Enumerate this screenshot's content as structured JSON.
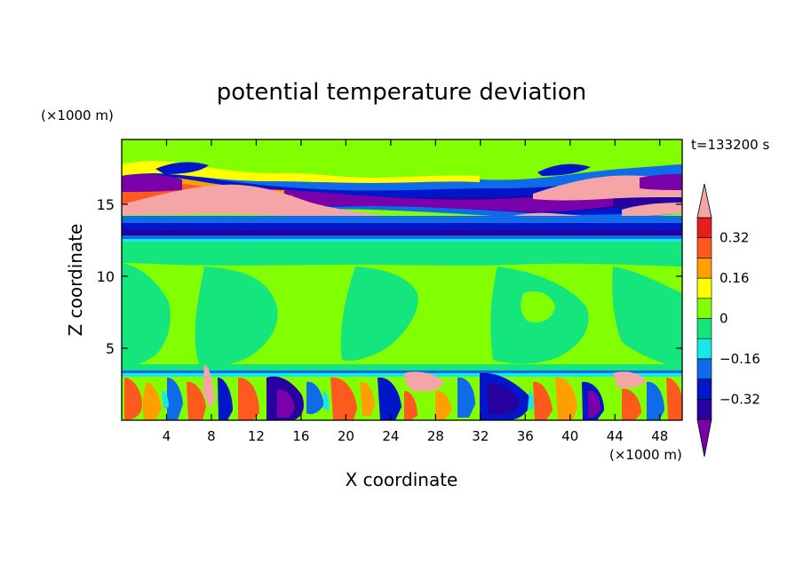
{
  "chart_data": {
    "type": "heatmap",
    "title": "potential temperature deviation",
    "xlabel": "X coordinate",
    "ylabel": "Z coordinate",
    "x_unit": "(×1000 m)",
    "y_unit": "(×1000 m)",
    "time_label": "t=133200 s",
    "xlim": [
      0,
      50
    ],
    "ylim": [
      0,
      19.5
    ],
    "x_ticks": [
      4,
      8,
      12,
      16,
      20,
      24,
      28,
      32,
      36,
      40,
      44,
      48
    ],
    "y_ticks": [
      5,
      10,
      15
    ],
    "colorbar": {
      "levels": [
        -0.4,
        -0.32,
        -0.24,
        -0.16,
        -0.08,
        0,
        0.08,
        0.16,
        0.24,
        0.32,
        0.4
      ],
      "labels": [
        "0.32",
        "0.16",
        "0",
        "−0.16",
        "−0.32"
      ],
      "label_values": [
        0.32,
        0.16,
        0,
        -0.16,
        -0.32
      ],
      "colors": [
        "#7a00aa",
        "#2800a0",
        "#0016c8",
        "#0f6be8",
        "#19e6e6",
        "#14e67d",
        "#82ff00",
        "#ffff00",
        "#ffa000",
        "#ff5a1e",
        "#e61e1e",
        "#f5a5a5"
      ]
    },
    "description_bands": [
      {
        "z": [
          0,
          3.5
        ],
        "field": "turbulent boundary layer, alternating warm/cold cells"
      },
      {
        "z": [
          3.5,
          13
        ],
        "field": "near zero, values 0 to 0.08"
      },
      {
        "z": [
          13,
          17.5
        ],
        "field": "strong inversion layer, cold below, warm tongues"
      },
      {
        "z": [
          17.5,
          19.5
        ],
        "field": "near zero"
      }
    ]
  }
}
